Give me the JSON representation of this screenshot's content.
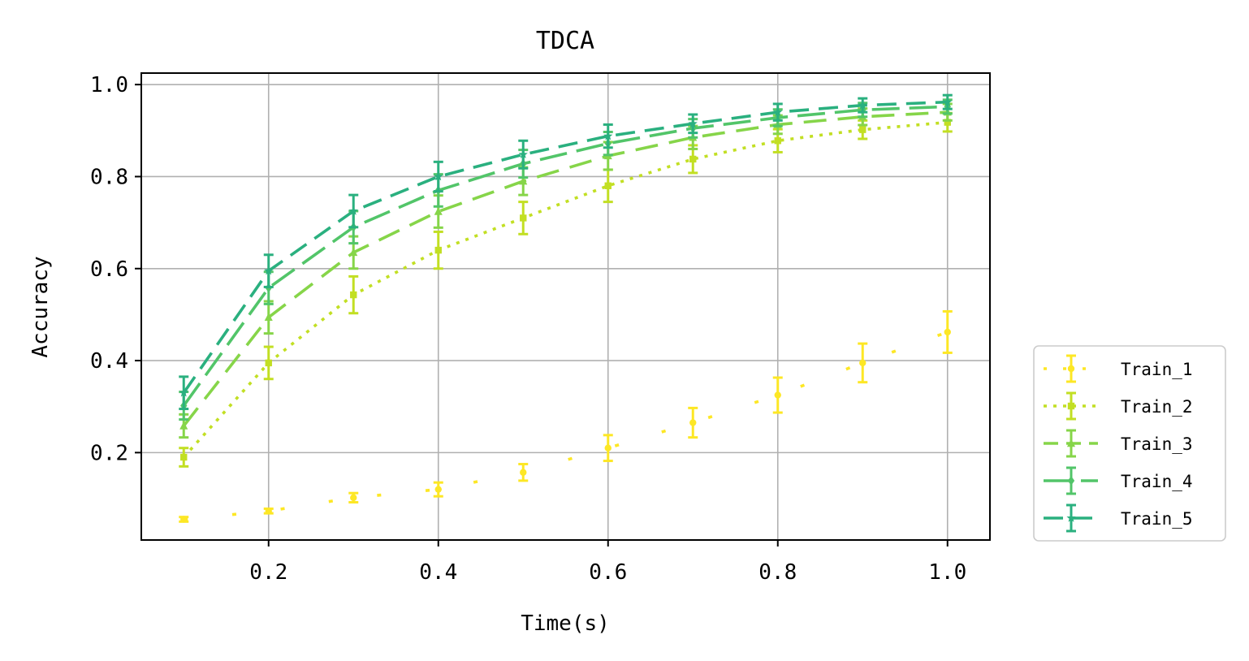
{
  "chart_data": {
    "type": "line",
    "title": "TDCA",
    "xlabel": "Time(s)",
    "ylabel": "Accuracy",
    "xlim": [
      0.05,
      1.05
    ],
    "ylim": [
      0.01,
      1.025
    ],
    "xticks": [
      0.2,
      0.4,
      0.6,
      0.8,
      1.0
    ],
    "xtick_labels": [
      "0.2",
      "0.4",
      "0.6",
      "0.8",
      "1.0"
    ],
    "yticks": [
      0.2,
      0.4,
      0.6,
      0.8,
      1.0
    ],
    "ytick_labels": [
      "0.2",
      "0.4",
      "0.6",
      "0.8",
      "1.0"
    ],
    "grid": true,
    "legend_position": "outside-right-bottom",
    "x": [
      0.1,
      0.2,
      0.3,
      0.4,
      0.5,
      0.6,
      0.7,
      0.8,
      0.9,
      1.0
    ],
    "series": [
      {
        "name": "Train_1",
        "color": "#fde725",
        "dash": "1 on 48 off",
        "marker": "circle",
        "values": [
          0.055,
          0.073,
          0.102,
          0.12,
          0.157,
          0.21,
          0.265,
          0.325,
          0.395,
          0.462
        ],
        "errors": [
          0.005,
          0.005,
          0.01,
          0.015,
          0.018,
          0.028,
          0.032,
          0.038,
          0.042,
          0.045
        ]
      },
      {
        "name": "Train_2",
        "color": "#c2df23",
        "dash": "dotted",
        "marker": "square",
        "values": [
          0.19,
          0.395,
          0.543,
          0.64,
          0.71,
          0.78,
          0.838,
          0.878,
          0.902,
          0.918
        ],
        "errors": [
          0.02,
          0.035,
          0.04,
          0.04,
          0.035,
          0.035,
          0.03,
          0.025,
          0.02,
          0.02
        ]
      },
      {
        "name": "Train_3",
        "color": "#86d549",
        "dash": "dashed",
        "marker": "triangle",
        "values": [
          0.258,
          0.494,
          0.635,
          0.724,
          0.79,
          0.845,
          0.885,
          0.913,
          0.93,
          0.94
        ],
        "errors": [
          0.025,
          0.035,
          0.035,
          0.035,
          0.03,
          0.03,
          0.025,
          0.02,
          0.018,
          0.018
        ]
      },
      {
        "name": "Train_4",
        "color": "#52c569",
        "dash": "long-dash",
        "marker": "diamond",
        "values": [
          0.302,
          0.558,
          0.69,
          0.77,
          0.828,
          0.872,
          0.905,
          0.928,
          0.945,
          0.952
        ],
        "errors": [
          0.03,
          0.035,
          0.035,
          0.035,
          0.03,
          0.025,
          0.02,
          0.018,
          0.015,
          0.015
        ]
      },
      {
        "name": "Train_5",
        "color": "#2ab07f",
        "dash": "dash",
        "marker": "star",
        "values": [
          0.33,
          0.595,
          0.725,
          0.8,
          0.848,
          0.888,
          0.915,
          0.94,
          0.955,
          0.962
        ],
        "errors": [
          0.035,
          0.035,
          0.035,
          0.032,
          0.03,
          0.025,
          0.02,
          0.018,
          0.015,
          0.015
        ]
      }
    ]
  }
}
